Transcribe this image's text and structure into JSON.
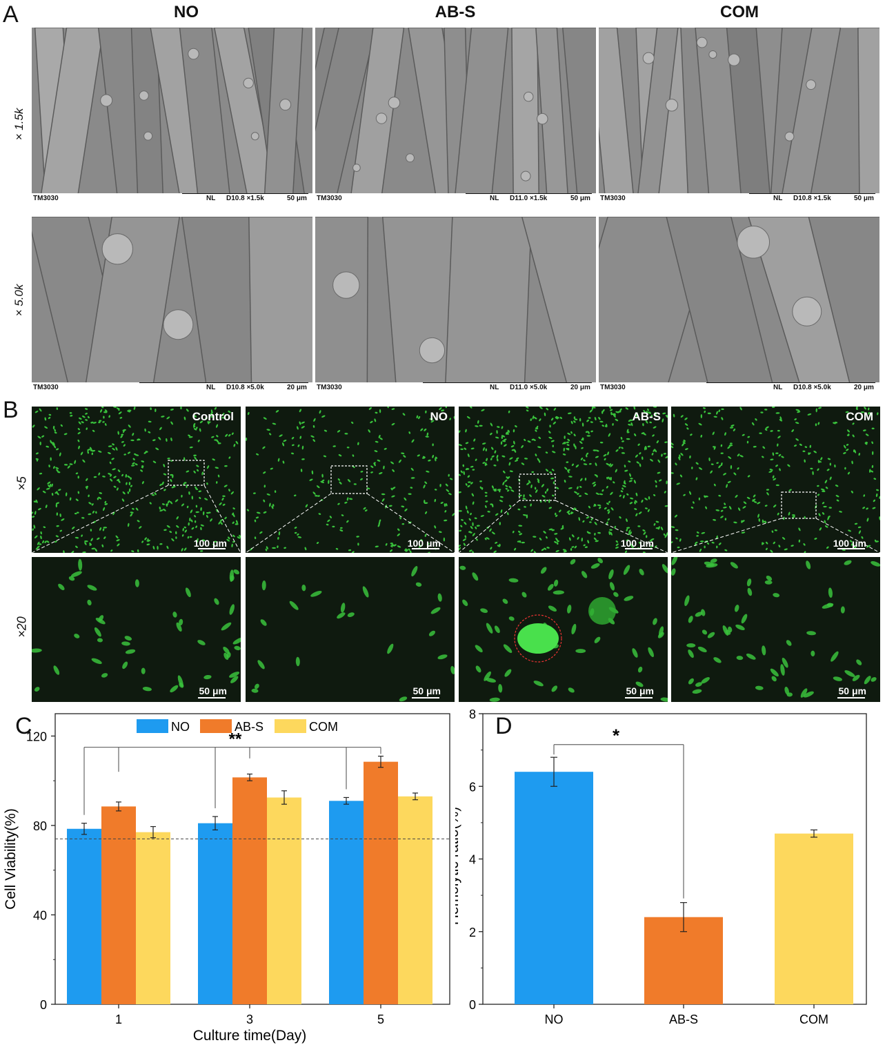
{
  "panels": {
    "A": {
      "letter": "A",
      "columns": [
        "NO",
        "AB-S",
        "COM"
      ],
      "rows": [
        "× 1.5k",
        "× 5.0k"
      ],
      "sem_info": [
        [
          {
            "model": "TM3030",
            "mode": "NL",
            "param": "D10.8 ×1.5k",
            "scale": "50 μm"
          },
          {
            "model": "TM3030",
            "mode": "NL",
            "param": "D11.0 ×1.5k",
            "scale": "50 μm"
          },
          {
            "model": "TM3030",
            "mode": "NL",
            "param": "D10.8 ×1.5k",
            "scale": "50 μm"
          }
        ],
        [
          {
            "model": "TM3030",
            "mode": "NL",
            "param": "D10.8 ×5.0k",
            "scale": "20 μm"
          },
          {
            "model": "TM3030",
            "mode": "NL",
            "param": "D11.0 ×5.0k",
            "scale": "20 μm"
          },
          {
            "model": "TM3030",
            "mode": "NL",
            "param": "D10.8 ×5.0k",
            "scale": "20 μm"
          }
        ]
      ]
    },
    "B": {
      "letter": "B",
      "columns": [
        "Control",
        "NO",
        "AB-S",
        "COM"
      ],
      "rows": [
        "×5",
        "×20"
      ],
      "scales": [
        [
          "100 μm",
          "100 μm",
          "100 μm",
          "100 μm"
        ],
        [
          "50 μm",
          "50 μm",
          "50 μm",
          "50 μm"
        ]
      ],
      "colors": {
        "cell": "#39c23c",
        "background": "#0f1a0f"
      }
    },
    "C": {
      "letter": "C"
    },
    "D": {
      "letter": "D"
    }
  },
  "chart_data": [
    {
      "type": "bar",
      "panel": "C",
      "categories": [
        "1",
        "3",
        "5"
      ],
      "series": [
        {
          "name": "NO",
          "color": "#1e9bf0",
          "values": [
            78.5,
            81,
            91
          ],
          "errors": [
            2.5,
            3,
            1.5
          ]
        },
        {
          "name": "AB-S",
          "color": "#f07b2a",
          "values": [
            88.5,
            101.5,
            108.5
          ],
          "errors": [
            2,
            1.5,
            2.5
          ]
        },
        {
          "name": "COM",
          "color": "#fdd85d",
          "values": [
            77,
            92.5,
            93
          ],
          "errors": [
            2.5,
            3,
            1.5
          ]
        }
      ],
      "xlabel": "Culture time(Day)",
      "ylabel": "Cell Viability(%)",
      "ylim": [
        0,
        130
      ],
      "yticks": [
        0,
        40,
        80,
        120
      ],
      "reference_line": 74,
      "legend": "top",
      "significance": "**"
    },
    {
      "type": "bar",
      "panel": "D",
      "categories": [
        "NO",
        "AB-S",
        "COM"
      ],
      "values": [
        6.4,
        2.4,
        4.7
      ],
      "errors": [
        0.4,
        0.4,
        0.1
      ],
      "colors": [
        "#1e9bf0",
        "#f07b2a",
        "#fdd85d"
      ],
      "xlabel": "",
      "ylabel": "Hemolytic ratio(%)",
      "ylim": [
        0,
        8
      ],
      "yticks": [
        0,
        2,
        4,
        6,
        8
      ],
      "significance": "*"
    }
  ]
}
